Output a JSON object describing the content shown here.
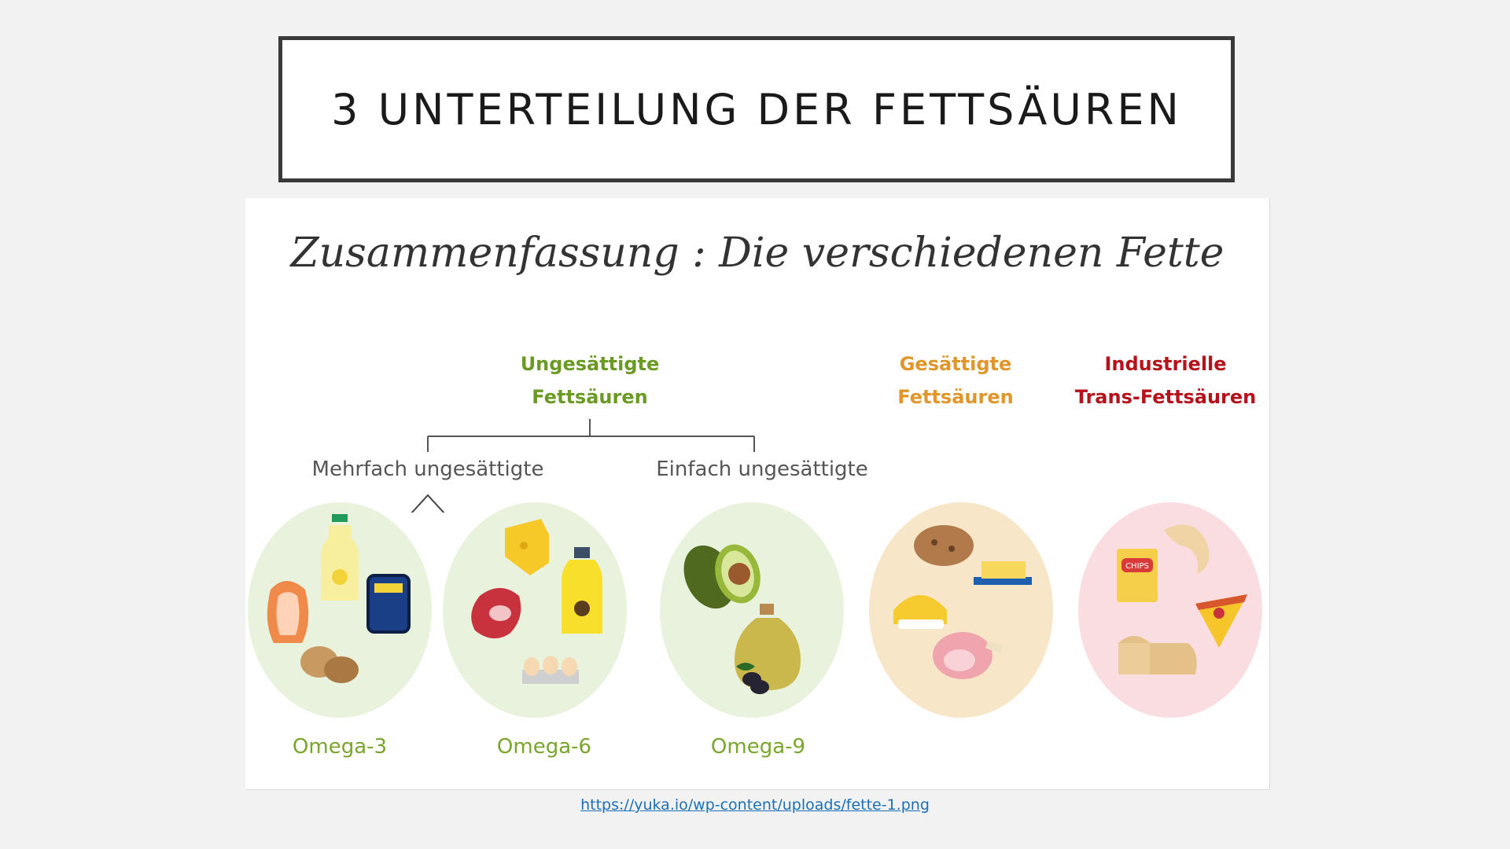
{
  "slide": {
    "title": "3 UNTERTEILUNG DER FETTSÄUREN",
    "source_url": "https://yuka.io/wp-content/uploads/fette-1.png"
  },
  "infographic": {
    "title": "Zusammenfassung : Die verschiedenen Fette",
    "groups": {
      "unsaturated": {
        "line1": "Ungesättigte",
        "line2": "Fettsäuren",
        "color": "#6a9a23"
      },
      "saturated": {
        "line1": "Gesättigte",
        "line2": "Fettsäuren",
        "color": "#e0962a"
      },
      "trans": {
        "line1": "Industrielle",
        "line2": "Trans-Fettsäuren",
        "color": "#b5121b"
      }
    },
    "subgroups": {
      "poly": "Mehrfach ungesättigte",
      "mono": "Einfach ungesättigte"
    },
    "omegas": [
      "Omega-3",
      "Omega-6",
      "Omega-9"
    ],
    "circle_colors": {
      "green": "#e8f2dc",
      "beige": "#f8e6c8",
      "pink": "#f9dde0"
    },
    "icons": {
      "omega3": [
        "oil-bottle-icon",
        "salmon-icon",
        "sardine-tin-icon",
        "walnut-icon"
      ],
      "omega6": [
        "cheese-icon",
        "meat-steak-icon",
        "sunflower-oil-icon",
        "eggs-icon"
      ],
      "omega9": [
        "avocado-icon",
        "olive-oil-icon",
        "olives-icon"
      ],
      "saturated": [
        "cookie-icon",
        "butter-icon",
        "chips-bowl-icon",
        "ham-icon"
      ],
      "trans": [
        "croissant-icon",
        "chips-bag-icon",
        "pizza-slice-icon",
        "bread-icon"
      ]
    },
    "chips_text": "CHIPS"
  }
}
